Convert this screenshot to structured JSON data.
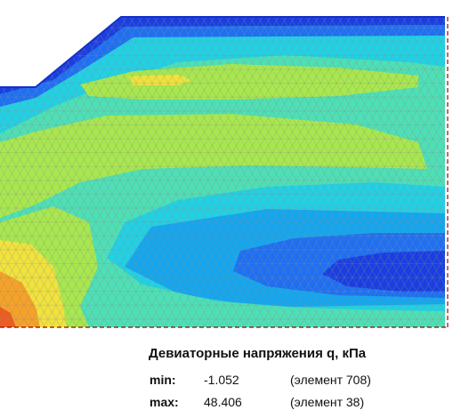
{
  "legend": {
    "title": "Девиаторные напряжения q, кПа",
    "min_label": "min:",
    "min_value": "-1.052",
    "min_element": "(элемент 708)",
    "max_label": "max:",
    "max_value": "48.406",
    "max_element": "(элемент 38)"
  },
  "colors": {
    "dark_blue": "#1a3ee0",
    "blue": "#1e6ff2",
    "light_blue": "#14a6ee",
    "cyan": "#21d1e4",
    "aqua_green": "#4de0b6",
    "yellow_green": "#a8e84e",
    "yellow": "#f1e33c",
    "orange": "#f7a227",
    "red_orange": "#ef5b1d",
    "mesh": "#8a8a8a",
    "boundary": "#a00000"
  }
}
